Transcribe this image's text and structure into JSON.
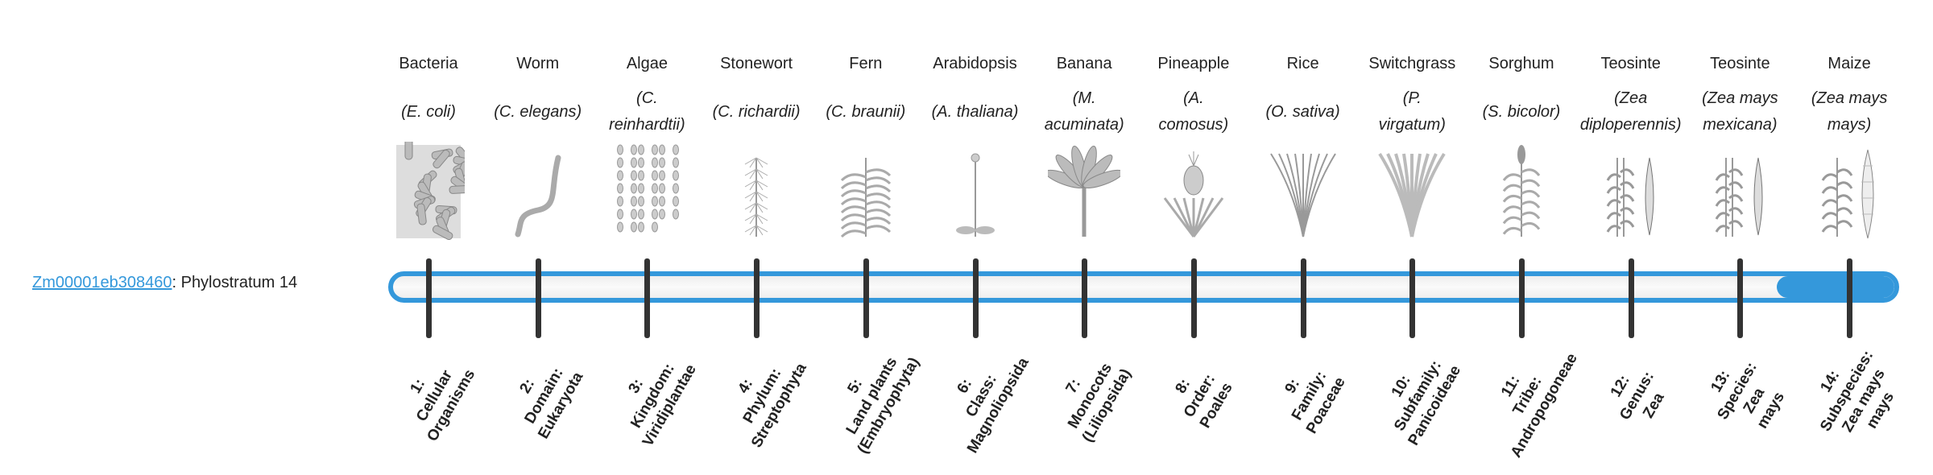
{
  "gene": {
    "id": "Zm00001eb308460",
    "suffix": ": Phylostratum 14"
  },
  "progress": {
    "value": 14,
    "max": 14,
    "color": "#3498db"
  },
  "organisms": [
    {
      "name": "Bacteria",
      "species": [
        "(E. coli)"
      ],
      "icon": "bacteria-icon",
      "label": [
        "1:",
        "Cellular",
        "Organisms"
      ]
    },
    {
      "name": "Worm",
      "species": [
        "(C. elegans)"
      ],
      "icon": "worm-icon",
      "label": [
        "2:",
        "Domain:",
        "Eukaryota"
      ]
    },
    {
      "name": "Algae",
      "species": [
        "(C.",
        "reinhardtii)"
      ],
      "icon": "algae-icon",
      "label": [
        "3:",
        "Kingdom:",
        "Viridiplantae"
      ]
    },
    {
      "name": "Stonewort",
      "species": [
        "(C. richardii)"
      ],
      "icon": "stonewort-icon",
      "label": [
        "4:",
        "Phylum:",
        "Streptophyta"
      ]
    },
    {
      "name": "Fern",
      "species": [
        "(C. braunii)"
      ],
      "icon": "fern-icon",
      "label": [
        "5:",
        "Land plants",
        "(Embryophyta)"
      ]
    },
    {
      "name": "Arabidopsis",
      "species": [
        "(A. thaliana)"
      ],
      "icon": "arabidopsis-icon",
      "label": [
        "6:",
        "Class:",
        "Magnoliopsida"
      ]
    },
    {
      "name": "Banana",
      "species": [
        "(M.",
        "acuminata)"
      ],
      "icon": "banana-plant-icon",
      "label": [
        "7:",
        "Monocots",
        "(Liliopsida)"
      ]
    },
    {
      "name": "Pineapple",
      "species": [
        "(A.",
        "comosus)"
      ],
      "icon": "pineapple-icon",
      "label": [
        "8:",
        "Order:",
        "Poales"
      ]
    },
    {
      "name": "Rice",
      "species": [
        "(O. sativa)"
      ],
      "icon": "rice-icon",
      "label": [
        "9:",
        "Family:",
        "Poaceae"
      ]
    },
    {
      "name": "Switchgrass",
      "species": [
        "(P.",
        "virgatum)"
      ],
      "icon": "switchgrass-icon",
      "label": [
        "10:",
        "Subfamily:",
        "Panicoideae"
      ]
    },
    {
      "name": "Sorghum",
      "species": [
        "(S. bicolor)"
      ],
      "icon": "sorghum-icon",
      "label": [
        "11:",
        "Tribe:",
        "Andropogoneae"
      ]
    },
    {
      "name": "Teosinte",
      "species": [
        "(Zea",
        "diploperennis)"
      ],
      "icon": "teosinte-icon",
      "label": [
        "12:",
        "Genus:",
        "Zea"
      ]
    },
    {
      "name": "Teosinte",
      "species": [
        "(Zea mays",
        "mexicana)"
      ],
      "icon": "teosinte-icon",
      "label": [
        "13:",
        "Species:",
        "Zea",
        "mays"
      ]
    },
    {
      "name": "Maize",
      "species": [
        "(Zea mays",
        "mays)"
      ],
      "icon": "maize-icon",
      "label": [
        "14:",
        "Subspecies:",
        "Zea mays",
        "mays"
      ]
    }
  ]
}
